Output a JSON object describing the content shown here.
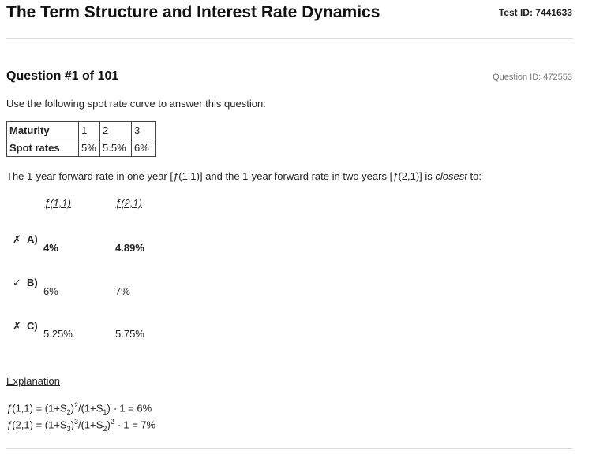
{
  "header": {
    "title": "The Term Structure and Interest Rate Dynamics",
    "test_id": "Test ID: 7441633"
  },
  "question": {
    "number_label": "Question #1 of 101",
    "id_label": "Question ID: 472553",
    "intro": "Use the following spot rate curve to answer this question:",
    "table": {
      "row1": [
        "Maturity",
        "1",
        "2",
        "3"
      ],
      "row2": [
        "Spot rates",
        "5%",
        "5.5%",
        "6%"
      ]
    },
    "stem": {
      "part1": "The 1-year forward rate in one year [",
      "f1": "ƒ",
      "part2": "(1,1)] and the 1-year forward rate in two years [",
      "f2": "ƒ",
      "part3": "(2,1)] is ",
      "emph": "closest",
      "part4": " to:"
    },
    "column_headers": [
      "ƒ(1,1)",
      "ƒ(2,1)"
    ],
    "answers": [
      {
        "mark": "✗",
        "letter": "A)",
        "v1": "4%",
        "v2": "4.89%"
      },
      {
        "mark": "✓",
        "letter": "B)",
        "v1": "6%",
        "v2": "7%"
      },
      {
        "mark": "✗",
        "letter": "C)",
        "v1": "5.25%",
        "v2": "5.75%"
      }
    ]
  },
  "explanation": {
    "heading": "Explanation",
    "line1": {
      "f": "ƒ",
      "a": "(1,1) = (1+S",
      "s1": "2",
      "b": ")",
      "p1": "2",
      "c": "/(1+S",
      "s2": "1",
      "d": ") - 1 = 6%"
    },
    "line2": {
      "f": "ƒ",
      "a": "(2,1) = (1+S",
      "s1": "3",
      "b": ")",
      "p1": "3",
      "c": "/(1+S",
      "s2": "2",
      "d": ")",
      "p2": "2",
      "e": " - 1 = 7%"
    }
  }
}
